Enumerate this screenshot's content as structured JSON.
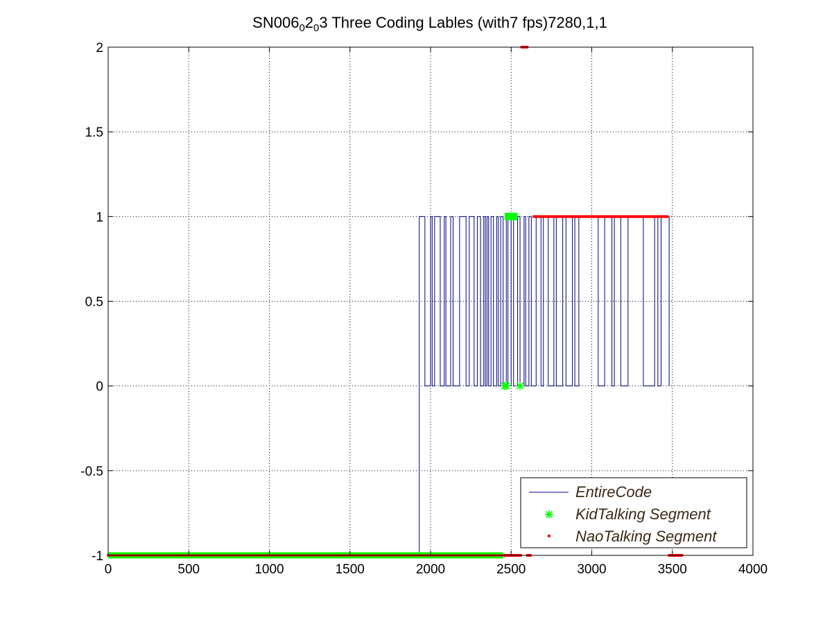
{
  "chart_data": {
    "type": "line",
    "title": {
      "parts": [
        {
          "text": "SN006",
          "sub": false
        },
        {
          "text": "0",
          "sub": true
        },
        {
          "text": "2",
          "sub": false
        },
        {
          "text": "0",
          "sub": true
        },
        {
          "text": "3 Three Coding Lables (with7 fps)7280,1,1",
          "sub": false
        }
      ]
    },
    "xlabel": "",
    "ylabel": "",
    "xlim": [
      0,
      4000
    ],
    "ylim": [
      -1,
      2
    ],
    "x_ticks": [
      0,
      500,
      1000,
      1500,
      2000,
      2500,
      3000,
      3500,
      4000
    ],
    "y_ticks": [
      -1,
      -0.5,
      0,
      0.5,
      1,
      1.5,
      2
    ],
    "grid": true,
    "legend_position": "bottom-right",
    "colors": {
      "entire": "#00007f",
      "kid": "#00ff00",
      "nao": "#ff0000",
      "grid": "#000000",
      "axes": "#000000"
    },
    "series": [
      {
        "name": "EntireCode",
        "style": "step-line",
        "start": [
          0,
          -1
        ],
        "points": [
          [
            1930,
            -1
          ],
          [
            1930,
            1
          ],
          [
            1965,
            1
          ],
          [
            1965,
            0
          ],
          [
            2000,
            0
          ],
          [
            2000,
            1
          ],
          [
            2010,
            1
          ],
          [
            2010,
            0
          ],
          [
            2025,
            0
          ],
          [
            2025,
            1
          ],
          [
            2060,
            1
          ],
          [
            2060,
            0
          ],
          [
            2085,
            0
          ],
          [
            2085,
            1
          ],
          [
            2095,
            1
          ],
          [
            2095,
            0
          ],
          [
            2125,
            0
          ],
          [
            2125,
            1
          ],
          [
            2140,
            1
          ],
          [
            2140,
            0
          ],
          [
            2180,
            0
          ],
          [
            2180,
            1
          ],
          [
            2220,
            1
          ],
          [
            2220,
            0
          ],
          [
            2240,
            0
          ],
          [
            2240,
            1
          ],
          [
            2270,
            1
          ],
          [
            2270,
            0
          ],
          [
            2290,
            0
          ],
          [
            2290,
            1
          ],
          [
            2310,
            1
          ],
          [
            2310,
            0
          ],
          [
            2330,
            0
          ],
          [
            2330,
            1
          ],
          [
            2340,
            1
          ],
          [
            2340,
            0
          ],
          [
            2350,
            0
          ],
          [
            2350,
            1
          ],
          [
            2360,
            1
          ],
          [
            2360,
            0
          ],
          [
            2375,
            0
          ],
          [
            2375,
            1
          ],
          [
            2390,
            1
          ],
          [
            2390,
            0
          ],
          [
            2410,
            0
          ],
          [
            2410,
            1
          ],
          [
            2420,
            1
          ],
          [
            2420,
            0
          ],
          [
            2435,
            0
          ],
          [
            2435,
            1
          ],
          [
            2450,
            1
          ],
          [
            2450,
            0
          ],
          [
            2470,
            0
          ],
          [
            2470,
            1
          ],
          [
            2480,
            1
          ],
          [
            2480,
            0
          ],
          [
            2500,
            0
          ],
          [
            2500,
            1
          ],
          [
            2515,
            1
          ],
          [
            2515,
            0
          ],
          [
            2540,
            0
          ],
          [
            2540,
            1
          ],
          [
            2555,
            1
          ],
          [
            2555,
            0
          ],
          [
            2580,
            0
          ],
          [
            2580,
            1
          ],
          [
            2590,
            1
          ],
          [
            2590,
            0
          ],
          [
            2610,
            0
          ],
          [
            2610,
            1
          ],
          [
            2625,
            1
          ],
          [
            2625,
            0
          ],
          [
            2655,
            0
          ],
          [
            2655,
            1
          ],
          [
            2685,
            1
          ],
          [
            2685,
            0
          ],
          [
            2700,
            0
          ],
          [
            2700,
            1
          ],
          [
            2730,
            1
          ],
          [
            2730,
            0
          ],
          [
            2765,
            0
          ],
          [
            2765,
            1
          ],
          [
            2780,
            1
          ],
          [
            2780,
            0
          ],
          [
            2820,
            0
          ],
          [
            2820,
            1
          ],
          [
            2840,
            1
          ],
          [
            2840,
            0
          ],
          [
            2880,
            0
          ],
          [
            2880,
            1
          ],
          [
            2895,
            1
          ],
          [
            2895,
            0
          ],
          [
            2920,
            0
          ],
          [
            2920,
            1
          ],
          [
            3040,
            1
          ],
          [
            3040,
            0
          ],
          [
            3080,
            0
          ],
          [
            3080,
            1
          ],
          [
            3125,
            1
          ],
          [
            3125,
            0
          ],
          [
            3140,
            0
          ],
          [
            3140,
            1
          ],
          [
            3180,
            1
          ],
          [
            3180,
            0
          ],
          [
            3225,
            0
          ],
          [
            3225,
            1
          ],
          [
            3320,
            1
          ],
          [
            3320,
            0
          ],
          [
            3390,
            0
          ],
          [
            3390,
            1
          ],
          [
            3410,
            1
          ],
          [
            3410,
            0
          ],
          [
            3430,
            0
          ],
          [
            3430,
            1
          ],
          [
            3480,
            1
          ],
          [
            3480,
            0
          ]
        ]
      },
      {
        "name": "KidTalking Segment",
        "style": "markers-star",
        "segments": [
          {
            "y": -1,
            "x_start": 0,
            "x_end": 2450
          },
          {
            "y": 1,
            "x_start": 2460,
            "x_end": 2540
          }
        ],
        "points": [
          [
            2460,
            0
          ],
          [
            2470,
            0
          ],
          [
            2555,
            0
          ]
        ]
      },
      {
        "name": "NaoTalking Segment",
        "style": "markers-dot",
        "segments": [
          {
            "y": -1,
            "x_start": 0,
            "x_end": 2450
          },
          {
            "y": -1,
            "x_start": 2450,
            "x_end": 2560
          },
          {
            "y": -1,
            "x_start": 2600,
            "x_end": 2620
          },
          {
            "y": 1,
            "x_start": 2640,
            "x_end": 3470
          },
          {
            "y": 2,
            "x_start": 2565,
            "x_end": 2600
          },
          {
            "y": -1,
            "x_start": 3480,
            "x_end": 3560
          }
        ],
        "points": []
      }
    ]
  }
}
